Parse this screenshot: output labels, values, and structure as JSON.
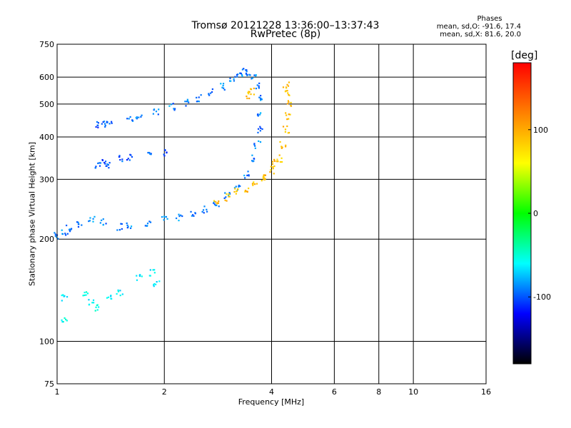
{
  "chart_data": {
    "type": "scatter",
    "title": "Tromsø 20121228 13:36:00–13:37:43",
    "subtitle": "RwPretec (8p)",
    "xlabel": "Frequency [MHz]",
    "ylabel": "Stationary phase Virtual Height [km]",
    "x_scale": "log",
    "y_scale": "log",
    "xlim": [
      1,
      16
    ],
    "ylim": [
      75,
      750
    ],
    "x_ticks": [
      1,
      2,
      4,
      6,
      8,
      10,
      16
    ],
    "y_ticks": [
      75,
      100,
      200,
      300,
      400,
      500,
      600,
      750
    ],
    "grid": true,
    "phases": {
      "title": "Phases",
      "line_o": "mean, sd,O: -91.6, 17.4",
      "line_x": "mean, sd,X:  81.6, 20.0"
    },
    "colorbar": {
      "unit": "[deg]",
      "range": [
        -180,
        180
      ],
      "ticks": [
        100,
        0,
        -100
      ],
      "colors": [
        "#ff0000",
        "#ff8000",
        "#ffff00",
        "#00ff00",
        "#00ffff",
        "#0000ff",
        "#000000"
      ]
    },
    "series": [
      {
        "trace": "o-trace-F2",
        "phase": -90,
        "points": [
          [
            1.0,
            205
          ],
          [
            1.05,
            208
          ],
          [
            1.08,
            215
          ],
          [
            1.15,
            222
          ],
          [
            1.25,
            228
          ],
          [
            1.35,
            225
          ],
          [
            1.5,
            218
          ],
          [
            1.6,
            220
          ],
          [
            1.8,
            224
          ],
          [
            2.0,
            228
          ],
          [
            2.2,
            232
          ],
          [
            2.4,
            238
          ],
          [
            2.6,
            245
          ],
          [
            2.8,
            255
          ],
          [
            3.0,
            268
          ],
          [
            3.2,
            285
          ],
          [
            3.4,
            310
          ],
          [
            3.55,
            345
          ],
          [
            3.65,
            380
          ],
          [
            3.7,
            420
          ],
          [
            3.72,
            470
          ],
          [
            3.73,
            520
          ],
          [
            3.65,
            570
          ],
          [
            3.55,
            600
          ],
          [
            3.45,
            615
          ],
          [
            3.35,
            625
          ],
          [
            3.25,
            610
          ],
          [
            3.1,
            590
          ],
          [
            2.9,
            565
          ],
          [
            2.7,
            540
          ],
          [
            2.5,
            520
          ],
          [
            2.3,
            505
          ],
          [
            2.1,
            490
          ],
          [
            1.9,
            475
          ],
          [
            1.7,
            462
          ],
          [
            1.6,
            455
          ]
        ]
      },
      {
        "trace": "o-trace-E",
        "phase": -100,
        "points": [
          [
            1.3,
            435
          ],
          [
            1.35,
            438
          ],
          [
            1.4,
            440
          ],
          [
            1.5,
            345
          ],
          [
            1.6,
            348
          ],
          [
            1.8,
            352
          ],
          [
            2.0,
            358
          ],
          [
            1.3,
            330
          ],
          [
            1.35,
            340
          ],
          [
            1.4,
            332
          ]
        ]
      },
      {
        "trace": "x-trace-F2",
        "phase": 90,
        "points": [
          [
            2.8,
            258
          ],
          [
            3.0,
            265
          ],
          [
            3.2,
            275
          ],
          [
            3.4,
            282
          ],
          [
            3.6,
            292
          ],
          [
            3.8,
            305
          ],
          [
            4.0,
            320
          ],
          [
            4.2,
            345
          ],
          [
            4.3,
            380
          ],
          [
            4.4,
            420
          ],
          [
            4.45,
            460
          ],
          [
            4.5,
            500
          ],
          [
            4.45,
            540
          ],
          [
            4.4,
            570
          ],
          [
            3.8,
            300
          ],
          [
            4.1,
            335
          ],
          [
            3.5,
            545
          ],
          [
            3.4,
            530
          ]
        ]
      },
      {
        "trace": "low-echoes",
        "phase": -60,
        "points": [
          [
            1.2,
            140
          ],
          [
            1.25,
            130
          ],
          [
            1.3,
            125
          ],
          [
            1.4,
            135
          ],
          [
            1.5,
            140
          ],
          [
            1.7,
            155
          ],
          [
            1.85,
            160
          ],
          [
            1.9,
            148
          ],
          [
            1.05,
            135
          ],
          [
            1.05,
            115
          ]
        ]
      }
    ]
  }
}
